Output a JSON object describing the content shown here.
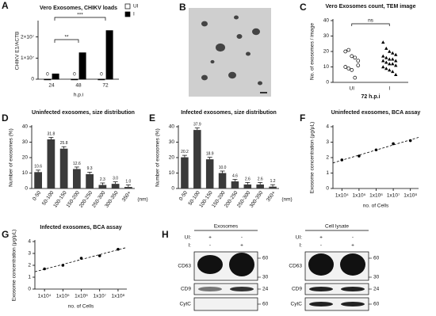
{
  "chart_data": [
    {
      "type": "bar",
      "panel": "A",
      "title": "Vero Exosomes, CHIKV loads",
      "ylabel": "CHIKV E1/ACTB",
      "xlabel": "h.p.i",
      "categories": [
        "24",
        "48",
        "72"
      ],
      "series": [
        {
          "name": "UI",
          "color": "#ffffff",
          "values": [
            0,
            0,
            0
          ],
          "show_values": true
        },
        {
          "name": "I",
          "color": "#000000",
          "values": [
            2500000,
            12500000,
            23000000
          ]
        }
      ],
      "ylim": [
        0,
        27000000
      ],
      "yticks": [
        0,
        {
          "value": 10000000,
          "label": "1×10⁷"
        },
        {
          "value": 20000000,
          "label": "2×10⁷"
        }
      ],
      "annotations": [
        "**",
        "***"
      ]
    },
    {
      "type": "image",
      "panel": "B"
    },
    {
      "type": "dotplot",
      "panel": "C",
      "title": "Vero Exosomes count, TEM image",
      "ylabel": "No. of exosomes / image",
      "xlabel": "72 h.p.i",
      "categories": [
        "UI",
        "I"
      ],
      "values": [
        [
          20,
          21,
          17,
          16,
          11,
          10,
          9,
          8,
          3,
          14
        ],
        [
          26,
          22,
          20,
          19,
          18,
          17,
          16,
          15,
          15,
          14,
          14,
          13,
          12,
          12,
          11,
          10,
          9,
          8,
          7,
          5
        ]
      ],
      "markers": [
        "circle",
        "triangle"
      ],
      "ylim": [
        0,
        40
      ],
      "yticks": [
        0,
        10,
        20,
        30,
        40
      ],
      "annotations": [
        "ns"
      ]
    },
    {
      "type": "bar",
      "panel": "D",
      "title": "Uninfected exosomes, size distribution",
      "ylabel": "Number of exosomes (%)",
      "xlabel": "(nm)",
      "categories": [
        "0-50",
        "50-100",
        "100-150",
        "150-200",
        "200-250",
        "250-300",
        "300-350",
        "350+"
      ],
      "values": [
        10.6,
        31.8,
        25.8,
        12.6,
        9.3,
        2.3,
        3.0,
        1.0
      ],
      "value_labels": [
        "10.6",
        "31.8",
        "25.8",
        "12.6",
        "9.3",
        "2.3",
        "3.0",
        "1.0"
      ],
      "color": "#3a3a3a",
      "ylim": [
        0,
        40
      ],
      "yticks": [
        0,
        10,
        20,
        30,
        40
      ]
    },
    {
      "type": "bar",
      "panel": "E",
      "title": "Infected exosomes, size distribution",
      "ylabel": "Number of exosomes (%)",
      "xlabel": "(nm)",
      "categories": [
        "0-50",
        "50-100",
        "100-150",
        "150-200",
        "200-250",
        "250-300",
        "300-350",
        "350+"
      ],
      "values": [
        20.2,
        37.9,
        18.9,
        10.0,
        4.6,
        2.6,
        2.6,
        1.2
      ],
      "value_labels": [
        "20.2",
        "37.9",
        "18.9",
        "10.0",
        "4.6",
        "2.6",
        "2.6",
        "1.2"
      ],
      "color": "#3a3a3a",
      "ylim": [
        0,
        40
      ],
      "yticks": [
        0,
        10,
        20,
        30,
        40
      ]
    },
    {
      "type": "scatter",
      "panel": "F",
      "title": "Uninfected exosomes, BCA assay",
      "ylabel": "Exosome concentration (μg/μL)",
      "xlabel": "no. of Cells",
      "x": [
        10000,
        100000,
        1000000,
        10000000,
        100000000
      ],
      "values": [
        1.85,
        2.1,
        2.5,
        2.9,
        3.1
      ],
      "xlog": true,
      "xlim": [
        3000,
        300000000
      ],
      "xticks": [
        {
          "value": 10000,
          "label": "1x10⁴"
        },
        {
          "value": 100000,
          "label": "1x10⁵"
        },
        {
          "value": 1000000,
          "label": "1x10⁶"
        },
        {
          "value": 10000000,
          "label": "1x10⁷"
        },
        {
          "value": 100000000,
          "label": "1x10⁸"
        }
      ],
      "ylim": [
        0,
        4
      ],
      "yticks": [
        0,
        1,
        2,
        3,
        4
      ],
      "trendline": true
    },
    {
      "type": "scatter",
      "panel": "G",
      "title": "Infected exosomes, BCA assay",
      "ylabel": "Exosome concentration (μg/μL)",
      "xlabel": "no. of Cells",
      "x": [
        10000,
        100000,
        1000000,
        10000000,
        100000000
      ],
      "values": [
        1.7,
        2.0,
        2.6,
        2.8,
        3.35
      ],
      "xlog": true,
      "xlim": [
        3000,
        300000000
      ],
      "xticks": [
        {
          "value": 10000,
          "label": "1x10⁴"
        },
        {
          "value": 100000,
          "label": "1x10⁵"
        },
        {
          "value": 1000000,
          "label": "1x10⁶"
        },
        {
          "value": 10000000,
          "label": "1x10⁷"
        },
        {
          "value": 100000000,
          "label": "1x10⁸"
        }
      ],
      "ylim": [
        0,
        4
      ],
      "yticks": [
        0,
        1,
        2,
        3,
        4
      ],
      "trendline": true
    },
    {
      "type": "blot",
      "panel": "H",
      "row_labels": [
        "UI:",
        "I:"
      ],
      "lanes": [
        [
          "+",
          "-"
        ],
        [
          "-",
          "+"
        ]
      ],
      "blots": [
        {
          "title": "Exosomes",
          "bands": [
            "CD63",
            "CD9",
            "CytC"
          ],
          "markers": [
            [
              "60",
              "30"
            ],
            [
              "24"
            ],
            [
              "60"
            ]
          ]
        },
        {
          "title": "Cell lysate",
          "bands": [
            "CD63",
            "CD9",
            "CytC"
          ],
          "markers": [
            [
              "60",
              "30"
            ],
            [
              "24"
            ],
            [
              "60"
            ]
          ]
        }
      ]
    }
  ]
}
